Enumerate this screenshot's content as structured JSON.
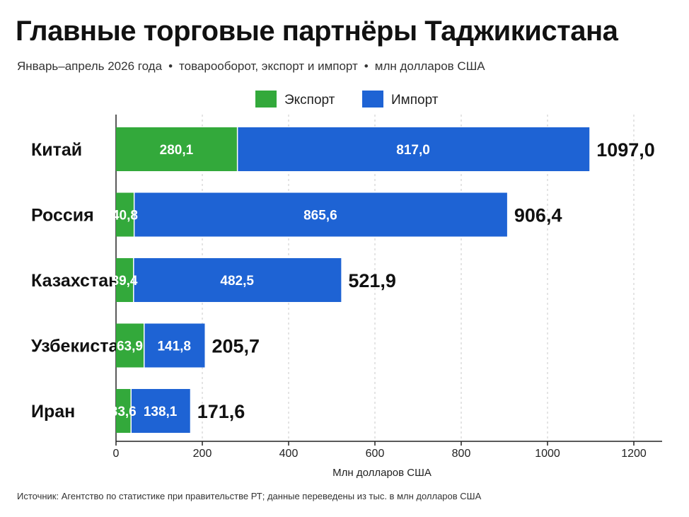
{
  "title": "Главные торговые партнёры Таджикистана",
  "subtitle": {
    "period": "Январь–апрель 2026 года",
    "separator": "•",
    "measure": "товарооборот, экспорт и импорт",
    "units": "млн долларов США"
  },
  "source": "Источник: Агентство по статистике при правительстве РТ; данные переведены из тыс. в млн долларов США",
  "colors": {
    "export": "#33a93b",
    "import": "#1e63d4"
  },
  "chart_data": {
    "type": "bar",
    "orientation": "horizontal",
    "stacked": true,
    "categories": [
      "Китай",
      "Россия",
      "Казахстан",
      "Узбекистан",
      "Иран"
    ],
    "series": [
      {
        "name": "Экспорт",
        "values": [
          280.1,
          40.8,
          39.4,
          63.9,
          33.6
        ]
      },
      {
        "name": "Импорт",
        "values": [
          817.0,
          865.6,
          482.5,
          141.8,
          138.1
        ]
      }
    ],
    "totals": [
      1097.0,
      906.4,
      521.9,
      205.7,
      171.6
    ],
    "value_labels": {
      "Экспорт": [
        "280,1",
        "40,8",
        "39,4",
        "63,9",
        "33,6"
      ],
      "Импорт": [
        "817,0",
        "865,6",
        "482,5",
        "141,8",
        "138,1"
      ],
      "totals": [
        "1097,0",
        "906,4",
        "521,9",
        "205,7",
        "171,6"
      ]
    },
    "xlabel": "Млн долларов США",
    "xlim": [
      0,
      1200
    ],
    "xticks": [
      0,
      200,
      400,
      600,
      800,
      1000,
      1200
    ],
    "grid": "vertical-dashed",
    "legend": "top-center"
  }
}
